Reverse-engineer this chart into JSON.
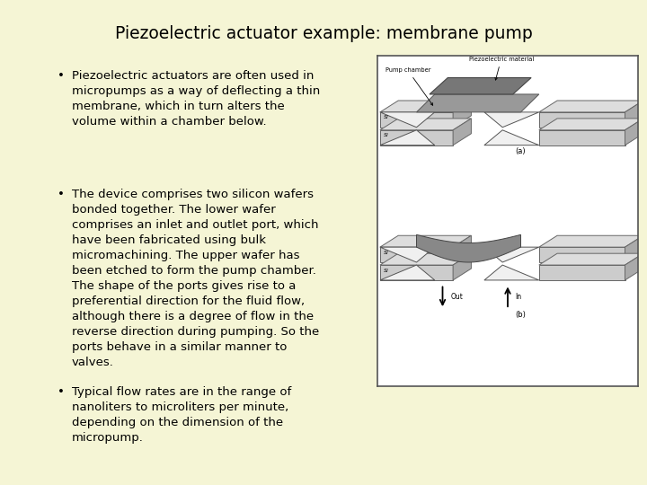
{
  "title": "Piezoelectric actuator example: membrane pump",
  "background_color": "#f5f5d5",
  "title_fontsize": 13.5,
  "bullet1": "Piezoelectric actuators are often used in\nmicropumps as a way of deflecting a thin\nmembrane, which in turn alters the\nvolume within a chamber below.",
  "bullet2": "The device comprises two silicon wafers\nbonded together. The lower wafer\ncomprises an inlet and outlet port, which\nhave been fabricated using bulk\nmicromachining. The upper wafer has\nbeen etched to form the pump chamber.\nThe shape of the ports gives rise to a\npreferential direction for the fluid flow,\nalthough there is a degree of flow in the\nreverse direction during pumping. So the\nports behave in a similar manner to\nvalves.",
  "bullet3": "Typical flow rates are in the range of\nnanoliters to microliters per minute,\ndepending on the dimension of the\nmicropump.",
  "text_fontsize": 9.5,
  "text_color": "#000000",
  "bg": "#f5f5d5"
}
